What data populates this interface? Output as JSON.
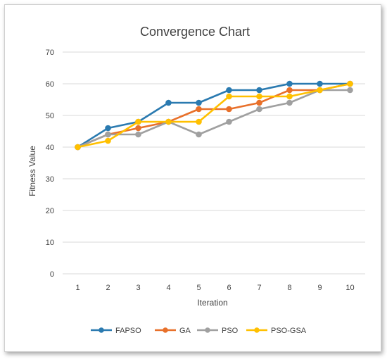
{
  "chart_data": {
    "type": "line",
    "title": "Convergence Chart",
    "xlabel": "Iteration",
    "ylabel": "Fitness Value",
    "x": [
      1,
      2,
      3,
      4,
      5,
      6,
      7,
      8,
      9,
      10
    ],
    "ylim": [
      0,
      70
    ],
    "yticks": [
      0,
      10,
      20,
      30,
      40,
      50,
      60,
      70
    ],
    "grid": true,
    "legend_position": "bottom",
    "series": [
      {
        "name": "FAPSO",
        "color": "#2a7ab0",
        "values": [
          40,
          46,
          48,
          54,
          54,
          58,
          58,
          60,
          60,
          60
        ]
      },
      {
        "name": "GA",
        "color": "#e8702a",
        "values": [
          40,
          44,
          46,
          48,
          52,
          52,
          54,
          58,
          58,
          60
        ]
      },
      {
        "name": "PSO",
        "color": "#a0a0a0",
        "values": [
          40,
          44,
          44,
          48,
          44,
          48,
          52,
          54,
          58,
          58
        ]
      },
      {
        "name": "PSO-GSA",
        "color": "#ffc000",
        "values": [
          40,
          42,
          48,
          48,
          48,
          56,
          56,
          56,
          58,
          60
        ]
      }
    ]
  }
}
